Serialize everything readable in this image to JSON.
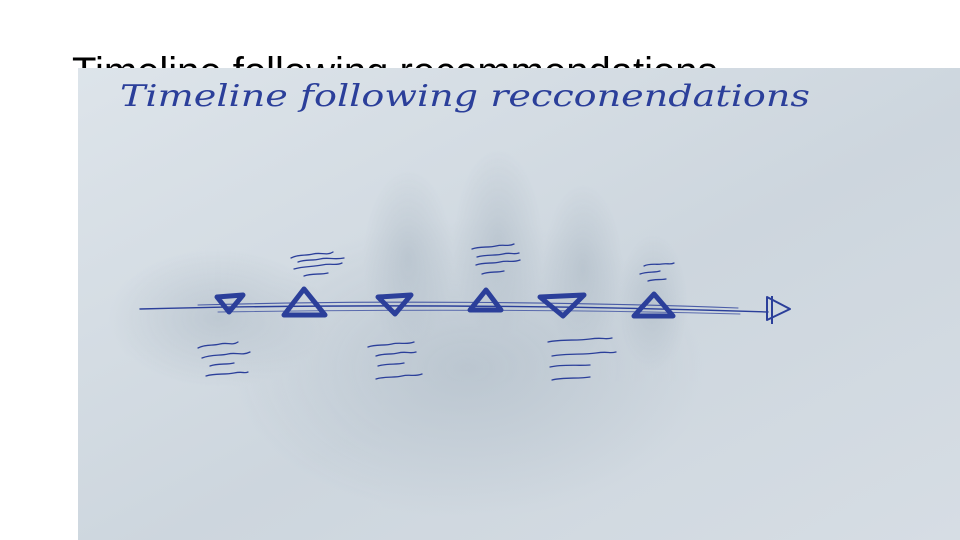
{
  "slide": {
    "title": "Timeline following recommendations"
  },
  "photo": {
    "handwritten_heading": "Timeline following recconendations",
    "colors": {
      "paper": "#d2dbe2",
      "ink": "#2b3f9a",
      "shadow": "#b7c3cd"
    },
    "timeline": {
      "markers": [
        "down-triangle",
        "up-triangle",
        "down-triangle",
        "up-triangle",
        "down-triangle",
        "up-triangle"
      ],
      "end": "arrow-head"
    }
  }
}
